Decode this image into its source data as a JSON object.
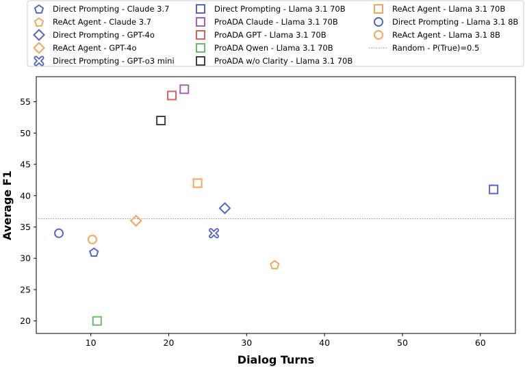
{
  "chart_data": {
    "type": "scatter",
    "title": "",
    "xlabel": "Dialog Turns",
    "ylabel": "Average F1",
    "xlim": [
      3,
      64.5
    ],
    "ylim": [
      18,
      59
    ],
    "xticks": [
      10,
      20,
      30,
      40,
      50,
      60
    ],
    "yticks": [
      20,
      25,
      30,
      35,
      40,
      45,
      50,
      55
    ],
    "grid": false,
    "legend_position": "top",
    "reference_line": {
      "name": "Random - P(True)=0.5",
      "y": 36.3,
      "color": "#808080"
    },
    "series": [
      {
        "name": "Direct Prompting - Claude 3.7",
        "marker": "pentagon",
        "color": "#5566c8",
        "x": 10.4,
        "y": 31
      },
      {
        "name": "ReAct Agent - Claude 3.7",
        "marker": "pentagon",
        "color": "#f5a55a",
        "x": 33.6,
        "y": 29
      },
      {
        "name": "Direct Prompting - GPT-4o",
        "marker": "diamond",
        "color": "#5566c8",
        "x": 27.2,
        "y": 38
      },
      {
        "name": "ReAct Agent - GPT-4o",
        "marker": "diamond",
        "color": "#f5a55a",
        "x": 15.8,
        "y": 36
      },
      {
        "name": "Direct Prompting - GPT-o3 mini",
        "marker": "x",
        "color": "#5566c8",
        "x": 25.8,
        "y": 34
      },
      {
        "name": "Direct Prompting - Llama 3.1 70B",
        "marker": "square",
        "color": "#5566c8",
        "x": 61.7,
        "y": 41
      },
      {
        "name": "ProADA Claude - Llama 3.1 70B",
        "marker": "square",
        "color": "#a060b8",
        "x": 22.0,
        "y": 57
      },
      {
        "name": "ProADA GPT - Llama 3.1 70B",
        "marker": "square",
        "color": "#d96060",
        "x": 20.4,
        "y": 56
      },
      {
        "name": "ProADA Qwen - Llama 3.1 70B",
        "marker": "square",
        "color": "#6cba6c",
        "x": 10.8,
        "y": 20
      },
      {
        "name": "ProADA w/o Clarity - Llama 3.1 70B",
        "marker": "square",
        "color": "#404040",
        "x": 19.0,
        "y": 52
      },
      {
        "name": "ReAct Agent - Llama 3.1 70B",
        "marker": "square",
        "color": "#f5a55a",
        "x": 23.7,
        "y": 42
      },
      {
        "name": "Direct Prompting - Llama 3.1 8B",
        "marker": "circle",
        "color": "#5566c8",
        "x": 5.9,
        "y": 34
      },
      {
        "name": "ReAct Agent - Llama 3.1 8B",
        "marker": "circle",
        "color": "#f5a55a",
        "x": 10.2,
        "y": 33
      }
    ]
  }
}
